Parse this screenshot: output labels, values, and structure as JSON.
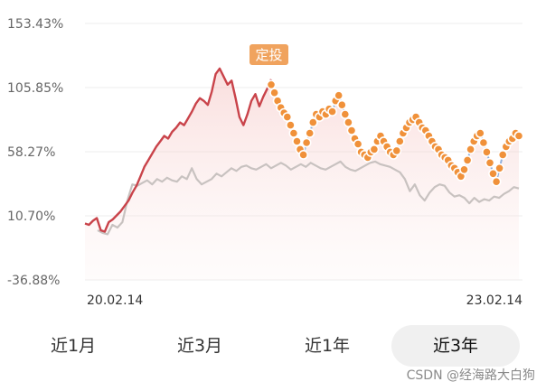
{
  "chart_data": {
    "type": "line",
    "y_ticks": [
      "153.43%",
      "105.85%",
      "58.27%",
      "10.70%",
      "-36.88%"
    ],
    "y_tick_values": [
      153.43,
      105.85,
      58.27,
      10.7,
      -36.88
    ],
    "ylim": [
      -36.88,
      153.43
    ],
    "x_ticks": [
      "20.02.14",
      "23.02.14"
    ],
    "grid": true,
    "annotation": "定投",
    "colors": {
      "fund": "#c9434a",
      "benchmark": "#c8c2c0",
      "dca": "#f0913a",
      "dca_line": "#8fb0dd",
      "badge": "#f0a35e"
    },
    "series": [
      {
        "values": [
          5,
          4,
          7,
          9,
          0,
          -1,
          6,
          8,
          11,
          14,
          18,
          22,
          28,
          33,
          40,
          47,
          52,
          57,
          62,
          66,
          70,
          68,
          73,
          76,
          80,
          78,
          83,
          88,
          94,
          98,
          96,
          93,
          103,
          116,
          120,
          114,
          108,
          111,
          98,
          84,
          78,
          86,
          96,
          101,
          92,
          99,
          105,
          112
        ]
      },
      {
        "values": [
          0,
          -2,
          -3,
          4,
          2,
          6,
          22,
          34,
          33,
          35,
          37,
          34,
          38,
          36,
          39,
          37,
          36,
          40,
          38,
          46,
          38,
          34,
          36,
          38,
          42,
          40,
          43,
          46,
          44,
          47,
          48,
          46,
          45,
          47,
          49,
          46,
          48,
          50,
          48,
          45,
          47,
          49,
          47,
          50,
          48,
          46,
          45,
          47,
          49,
          51,
          47,
          45,
          44,
          46,
          48,
          50,
          51,
          49,
          48,
          47,
          45,
          43,
          38,
          29,
          34,
          26,
          22,
          28,
          32,
          34,
          33,
          28,
          25,
          26,
          24,
          20,
          24,
          21,
          23,
          22,
          25,
          24,
          27,
          29,
          32,
          31
        ]
      },
      {
        "values": [
          108,
          102,
          96,
          91,
          87,
          84,
          78,
          72,
          66,
          60,
          56,
          65,
          72,
          80,
          86,
          84,
          88,
          86,
          90,
          88,
          96,
          100,
          93,
          86,
          80,
          74,
          68,
          64,
          58,
          56,
          54,
          58,
          60,
          66,
          70,
          66,
          62,
          58,
          56,
          59,
          66,
          72,
          76,
          80,
          82,
          84,
          80,
          76,
          74,
          70,
          66,
          62,
          60,
          56,
          54,
          52,
          48,
          46,
          43,
          40,
          45,
          52,
          60,
          66,
          70,
          72,
          65,
          58,
          50,
          42,
          36,
          46,
          56,
          62,
          66,
          68,
          72,
          70
        ]
      }
    ]
  },
  "tabs": [
    {
      "label": "近1月",
      "active": false
    },
    {
      "label": "近3月",
      "active": false
    },
    {
      "label": "近1年",
      "active": false
    },
    {
      "label": "近3年",
      "active": true
    }
  ],
  "watermark": "CSDN @经海路大白狗"
}
